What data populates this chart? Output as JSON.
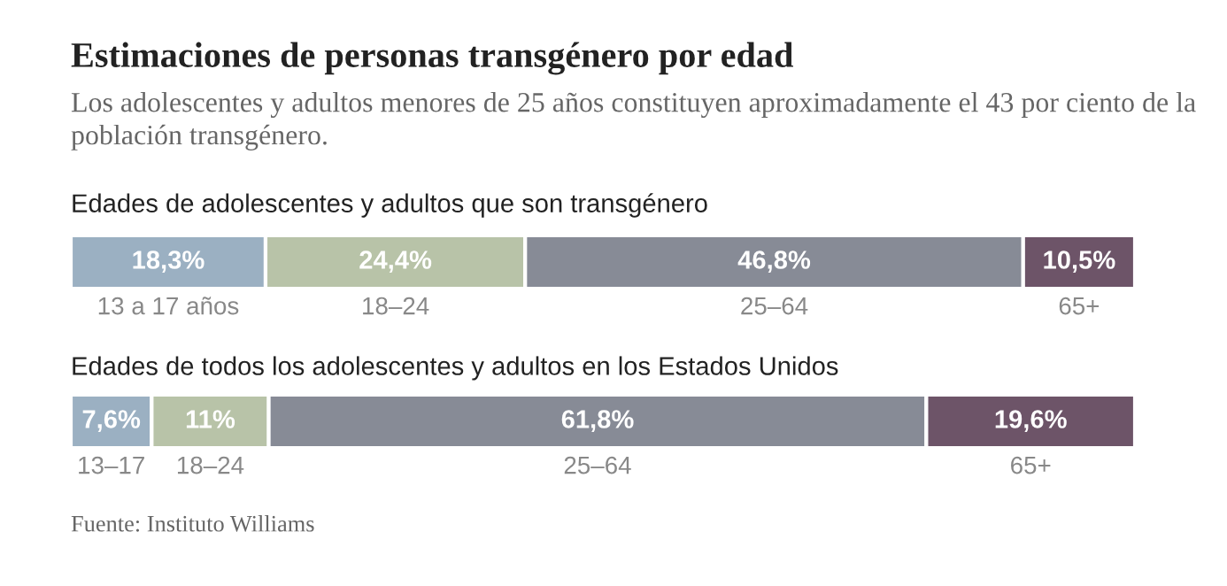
{
  "chart_data": [
    {
      "type": "bar",
      "orientation": "horizontal",
      "stacked": true,
      "title": "Estimaciones de personas transgénero por edad",
      "subtitle": "Los adolescentes y adultos menores de 25 años constituyen aproximadamente el 43 por ciento de la población transgénero.",
      "annotations": [
        "Edades de adolescentes y adultos que son transgénero"
      ],
      "categories": [
        null
      ],
      "xlim": [
        0,
        100
      ],
      "tick_labels": false,
      "series": [
        {
          "name": "13 a 17 años",
          "color": "#9bb0c2",
          "values": [
            18.3
          ],
          "value_labels": [
            "18,3%"
          ]
        },
        {
          "name": "18–24",
          "color": "#b8c3a8",
          "values": [
            24.4
          ],
          "value_labels": [
            "24,4%"
          ]
        },
        {
          "name": "25–64",
          "color": "#878b96",
          "values": [
            46.8
          ],
          "value_labels": [
            "46,8%"
          ]
        },
        {
          "name": "65+",
          "color": "#6d5468",
          "values": [
            10.5
          ],
          "value_labels": [
            "10,5%"
          ]
        }
      ]
    },
    {
      "type": "bar",
      "orientation": "horizontal",
      "stacked": true,
      "title": "Edades de todos los adolescentes y adultos en los Estados Unidos",
      "annotations": [
        "Fuente: Instituto Williams"
      ],
      "categories": [
        null
      ],
      "xlim": [
        0,
        100
      ],
      "tick_labels": false,
      "series": [
        {
          "name": "13–17",
          "color": "#9bb0c2",
          "values": [
            7.6
          ],
          "value_labels": [
            "7,6%"
          ]
        },
        {
          "name": "18–24",
          "color": "#b8c3a8",
          "values": [
            11
          ],
          "value_labels": [
            "11%"
          ]
        },
        {
          "name": "25–64",
          "color": "#878b96",
          "values": [
            61.8
          ],
          "value_labels": [
            "61,8%"
          ]
        },
        {
          "name": "65+",
          "color": "#6d5468",
          "values": [
            19.6
          ],
          "value_labels": [
            "19,6%"
          ]
        }
      ]
    }
  ]
}
